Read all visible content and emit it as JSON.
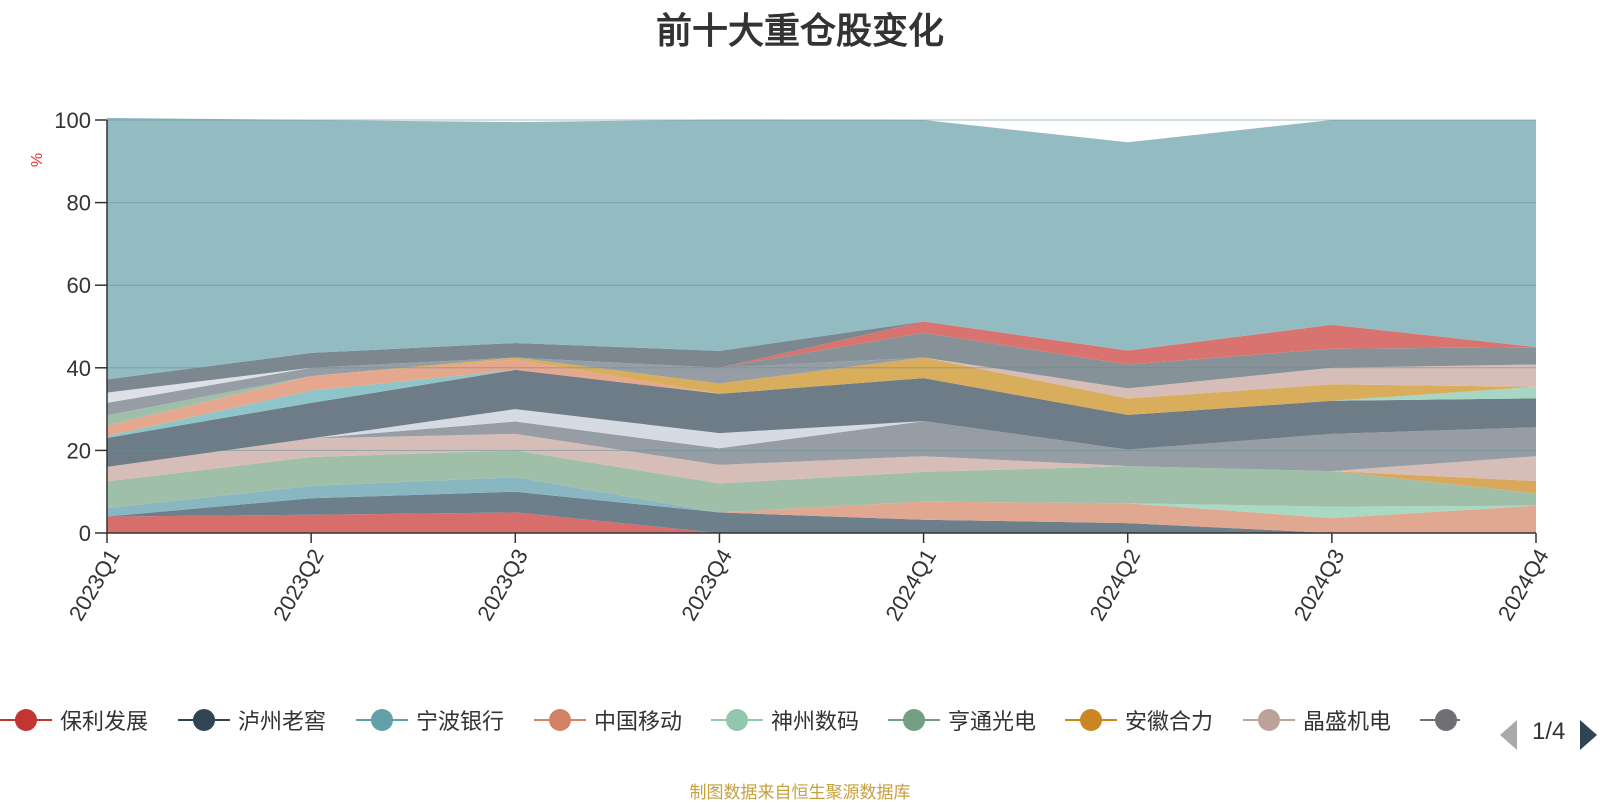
{
  "chart_data": {
    "type": "area",
    "title": "前十大重仓股变化",
    "ylabel": "%",
    "xlabel": "",
    "ylim": [
      0,
      100
    ],
    "y_ticks": [
      0,
      20,
      40,
      60,
      80,
      100
    ],
    "categories": [
      "2023Q1",
      "2023Q2",
      "2023Q3",
      "2023Q4",
      "2024Q1",
      "2024Q2",
      "2024Q3",
      "2024Q4"
    ],
    "stacked": true,
    "grid": true,
    "legend_position": "bottom",
    "series": [
      {
        "name": "保利发展",
        "color": "#d86e6c",
        "values": [
          4.0,
          4.4,
          5.0,
          0.0,
          0.0,
          0.0,
          0.0,
          0.0
        ]
      },
      {
        "name": "泸州老窖",
        "color": "#6e7f8c",
        "values": [
          0.0,
          4.0,
          5.0,
          5.0,
          3.2,
          2.4,
          0.0,
          0.0
        ]
      },
      {
        "name": "宁波银行",
        "color": "#88b7c1",
        "values": [
          2.0,
          3.0,
          3.5,
          0.0,
          0.0,
          0.0,
          0.0,
          0.0
        ]
      },
      {
        "name": "中国移动",
        "color": "#e0a891",
        "values": [
          0.0,
          0.0,
          0.0,
          0.0,
          4.4,
          4.8,
          3.6,
          6.6
        ]
      },
      {
        "name": "神州数码",
        "color": "#a9d8c3",
        "values": [
          0.0,
          0.0,
          0.0,
          0.0,
          0.0,
          0.0,
          2.8,
          0.0
        ]
      },
      {
        "name": "亨通光电",
        "color": "#9fbfa8",
        "values": [
          6.5,
          7.0,
          6.5,
          7.0,
          7.2,
          9.0,
          8.6,
          3.0
        ]
      },
      {
        "name": "安徽合力",
        "color": "#d8a95d",
        "values": [
          0.0,
          0.0,
          0.0,
          0.0,
          0.0,
          0.0,
          0.0,
          3.0
        ]
      },
      {
        "name": "晶盛机电",
        "color": "#d7bdb8",
        "values": [
          3.5,
          4.5,
          4.0,
          4.5,
          3.8,
          0.0,
          0.0,
          6.0
        ]
      },
      {
        "name": "",
        "color": "#979da5",
        "values": [
          0.0,
          0.0,
          3.0,
          4.0,
          8.5,
          4.0,
          9.0,
          7.0
        ]
      },
      {
        "name": "",
        "color": "#d6dae2",
        "values": [
          0.0,
          0.0,
          3.0,
          3.7,
          0.0,
          0.0,
          0.0,
          0.0
        ]
      },
      {
        "name": "",
        "color": "#6e7c88",
        "values": [
          7.0,
          8.6,
          9.5,
          9.5,
          10.4,
          8.4,
          8.0,
          7.0
        ]
      },
      {
        "name": "",
        "color": "#8fc4c8",
        "values": [
          0.5,
          3.0,
          0.0,
          0.0,
          0.0,
          0.0,
          0.0,
          0.0
        ]
      },
      {
        "name": "",
        "color": "#a8d6c4",
        "values": [
          0.0,
          0.0,
          0.0,
          0.0,
          0.0,
          0.0,
          0.0,
          2.8
        ]
      },
      {
        "name": "",
        "color": "#e5a88e",
        "values": [
          2.5,
          3.5,
          2.5,
          0.0,
          0.0,
          0.0,
          0.0,
          0.0
        ]
      },
      {
        "name": "",
        "color": "#d8ad5c",
        "values": [
          0.0,
          0.0,
          0.5,
          2.5,
          5.0,
          4.0,
          4.0,
          0.0
        ]
      },
      {
        "name": "",
        "color": "#9fbfa8",
        "values": [
          2.5,
          0.0,
          0.0,
          0.0,
          0.0,
          0.0,
          0.0,
          0.0
        ]
      },
      {
        "name": "",
        "color": "#d7bdb8",
        "values": [
          0.0,
          0.0,
          0.0,
          0.0,
          0.0,
          2.4,
          4.0,
          5.4
        ]
      },
      {
        "name": "",
        "color": "#979da5",
        "values": [
          3.0,
          2.0,
          0.0,
          3.8,
          0.0,
          0.0,
          0.0,
          0.0
        ]
      },
      {
        "name": "",
        "color": "#869198",
        "values": [
          0.0,
          0.0,
          0.0,
          0.0,
          6.0,
          5.8,
          4.6,
          4.2
        ]
      },
      {
        "name": "",
        "color": "#dde0e6",
        "values": [
          2.5,
          0.0,
          0.0,
          0.0,
          0.0,
          0.0,
          0.0,
          0.0
        ]
      },
      {
        "name": "",
        "color": "#d8736f",
        "values": [
          0.0,
          0.0,
          0.0,
          0.0,
          2.7,
          3.4,
          5.8,
          0.0
        ]
      },
      {
        "name": "",
        "color": "#7c8790",
        "values": [
          3.2,
          3.6,
          3.5,
          4.1,
          0.0,
          0.0,
          0.0,
          0.0
        ]
      },
      {
        "name": "",
        "color": "#93bbc2",
        "values": [
          63.3,
          56.4,
          53.5,
          56.0,
          48.8,
          50.4,
          49.6,
          55.0
        ]
      }
    ],
    "legend": [
      {
        "name": "保利发展",
        "color": "#c23531"
      },
      {
        "name": "泸州老窖",
        "color": "#2f4554"
      },
      {
        "name": "宁波银行",
        "color": "#61a0a8"
      },
      {
        "name": "中国移动",
        "color": "#d48265"
      },
      {
        "name": "神州数码",
        "color": "#91c7ae"
      },
      {
        "name": "亨通光电",
        "color": "#749f83"
      },
      {
        "name": "安徽合力",
        "color": "#ca8622"
      },
      {
        "name": "晶盛机电",
        "color": "#bda29a"
      },
      {
        "name": "",
        "color": "#6e7074"
      }
    ]
  },
  "legend_pager": {
    "text": "1/4"
  },
  "source_note": "制图数据来自恒生聚源数据库"
}
